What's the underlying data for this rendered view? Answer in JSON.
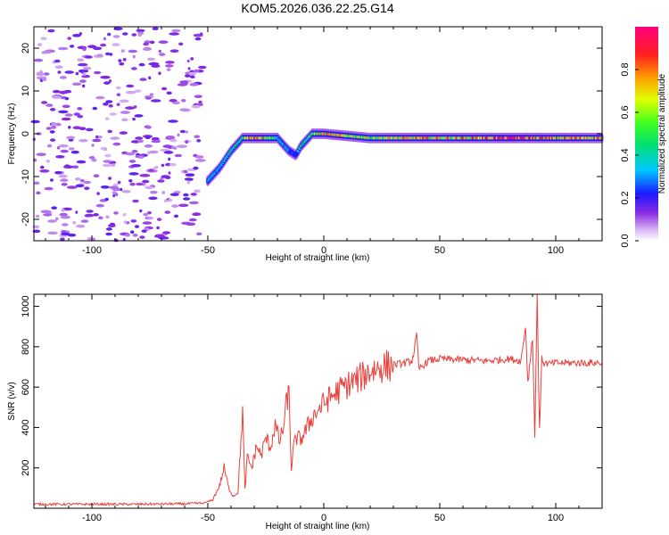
{
  "figure_title": "KOM5.2026.036.22.25.G14",
  "chart_data": [
    {
      "type": "heatmap",
      "title": "KOM5.2026.036.22.25.G14",
      "xlabel": "Height of straight line (km)",
      "ylabel": "Frequency (Hz)",
      "xlim": [
        -125,
        120
      ],
      "ylim": [
        -25,
        25
      ],
      "xticks": [
        -100,
        -50,
        0,
        50,
        100
      ],
      "yticks": [
        -20,
        -10,
        0,
        10,
        20
      ],
      "colorbar": {
        "label": "Normalized spectral amplitude",
        "range": [
          0,
          1
        ],
        "ticks": [
          0.0,
          0.2,
          0.4,
          0.6,
          0.8
        ],
        "tick_labels": [
          "0.0",
          "0.2",
          "0.4",
          "0.6",
          "0.8"
        ]
      },
      "ridge": {
        "description_points_height_km": [
          -50,
          -45,
          -40,
          -35,
          -30,
          -25,
          -20,
          -15,
          -12,
          -10,
          -5,
          0,
          20,
          40,
          60,
          80,
          100,
          120
        ],
        "frequency_hz": [
          -11,
          -8,
          -4,
          -1,
          -1,
          -1,
          -1,
          -4,
          -5,
          -3,
          0,
          0,
          -1,
          -1,
          -1,
          -1,
          -1,
          -1
        ],
        "amplitude": [
          0.3,
          0.3,
          0.4,
          0.5,
          0.9,
          0.7,
          0.4,
          0.3,
          0.2,
          0.4,
          0.5,
          0.7,
          0.6,
          0.7,
          0.7,
          0.9,
          0.7,
          0.8
        ]
      },
      "noise_region_km": [
        -125,
        -52
      ],
      "noise_amplitude": 0.1
    },
    {
      "type": "line",
      "xlabel": "Height of straight line (km)",
      "ylabel": "SNR (v/v)",
      "xlim": [
        -125,
        120
      ],
      "ylim": [
        0,
        1060
      ],
      "xticks": [
        -100,
        -50,
        0,
        50,
        100
      ],
      "yticks": [
        200,
        400,
        600,
        800,
        1000
      ],
      "series": [
        {
          "name": "SNR",
          "color": "#e8413c",
          "x": [
            -125,
            -100,
            -80,
            -60,
            -52,
            -48,
            -45,
            -43,
            -41,
            -39,
            -37,
            -35,
            -34,
            -33,
            -31,
            -29,
            -27,
            -25,
            -23,
            -21,
            -19,
            -17,
            -16,
            -15,
            -14,
            -13,
            -12,
            -10,
            -8,
            -5,
            0,
            5,
            10,
            15,
            20,
            25,
            30,
            35,
            38,
            39,
            40,
            41,
            45,
            50,
            60,
            70,
            80,
            85,
            87,
            88,
            90,
            91,
            92,
            93,
            94,
            95,
            97,
            100,
            110,
            120
          ],
          "y": [
            20,
            20,
            20,
            22,
            25,
            40,
            110,
            200,
            100,
            60,
            80,
            480,
            90,
            250,
            200,
            310,
            260,
            350,
            300,
            410,
            330,
            420,
            540,
            560,
            200,
            300,
            350,
            340,
            380,
            450,
            520,
            570,
            610,
            640,
            680,
            700,
            710,
            720,
            730,
            780,
            860,
            690,
            730,
            740,
            735,
            730,
            740,
            730,
            900,
            620,
            850,
            350,
            1060,
            380,
            740,
            720,
            715,
            720,
            720,
            720
          ]
        }
      ]
    }
  ]
}
